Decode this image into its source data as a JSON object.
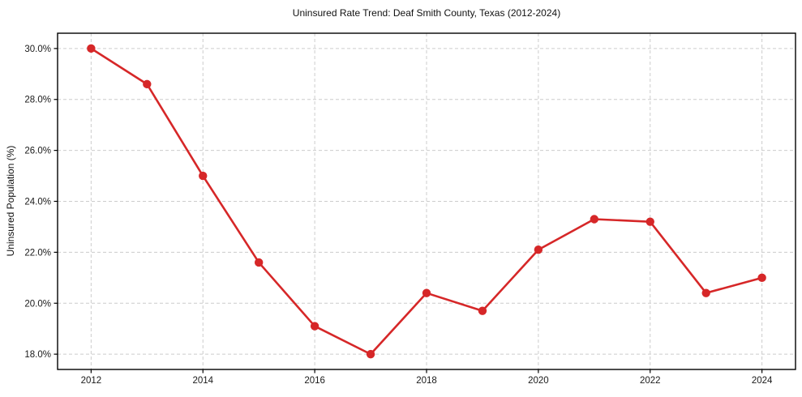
{
  "chart_data": {
    "type": "line",
    "title": "Uninsured Rate Trend: Deaf Smith County, Texas (2012-2024)",
    "xlabel": "",
    "ylabel": "Uninsured Population (%)",
    "x": [
      2012,
      2013,
      2014,
      2015,
      2016,
      2017,
      2018,
      2019,
      2020,
      2021,
      2022,
      2023,
      2024
    ],
    "values": [
      30.0,
      28.6,
      25.0,
      21.6,
      19.1,
      18.0,
      20.4,
      19.7,
      22.1,
      23.3,
      23.2,
      20.4,
      21.0
    ],
    "xlim": [
      2011.4,
      2024.6
    ],
    "ylim": [
      17.4,
      30.6
    ],
    "x_ticks": [
      2012,
      2014,
      2016,
      2018,
      2020,
      2022,
      2024
    ],
    "x_tick_labels": [
      "2012",
      "2014",
      "2016",
      "2018",
      "2020",
      "2022",
      "2024"
    ],
    "y_ticks": [
      18,
      20,
      22,
      24,
      26,
      28,
      30
    ],
    "y_tick_labels": [
      "18.0%",
      "20.0%",
      "22.0%",
      "24.0%",
      "26.0%",
      "28.0%",
      "30.0%"
    ],
    "grid": true,
    "legend": null,
    "line_color": "#d62728",
    "marker_color": "#d62728",
    "grid_color": "#cccccc",
    "axis_color": "#000000",
    "plot_background": "#ffffff"
  }
}
